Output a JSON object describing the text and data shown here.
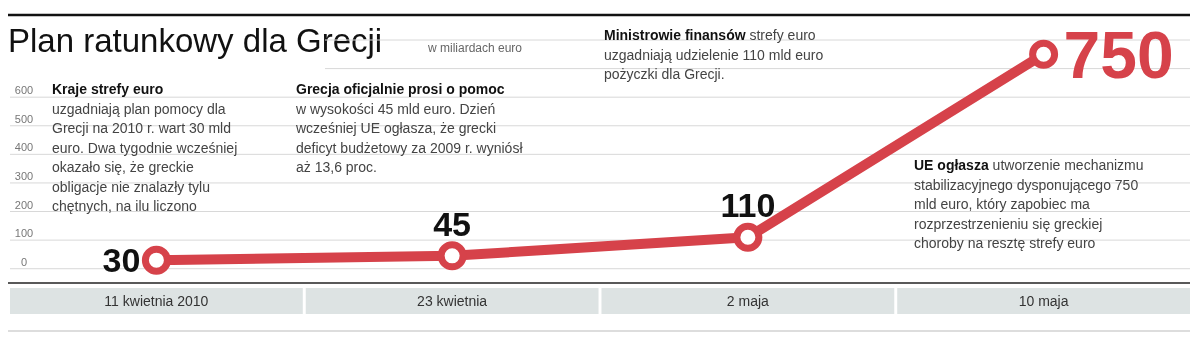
{
  "chart_data": {
    "type": "line",
    "title": "Plan ratunkowy dla Grecji",
    "subtitle": "w miliardach euro",
    "categories": [
      "11 kwietnia 2010",
      "23 kwietnia",
      "2 maja",
      "10 maja"
    ],
    "values": [
      30,
      45,
      110,
      750
    ],
    "color": "#d6424a",
    "marker": "circle",
    "line_style": "solid",
    "data_labels": true,
    "ylim": [
      -50,
      800
    ],
    "yticks": [
      0,
      100,
      200,
      300,
      400,
      500,
      600,
      {
        "value": 700,
        "label": null
      },
      {
        "value": 800,
        "label": null
      }
    ],
    "grid": "y",
    "legend": false,
    "annotations": [
      "Kraje strefy euro",
      "uzgadniają plan pomocy dla Grecji na 2010 r. wart 30 mld euro. Dwa tygodnie wcześniej okazało się, że greckie obligacje nie znalazły tylu chętnych, na ilu liczono",
      "Grecja oficjalnie prosi o pomoc",
      "w wysokości 45 mld euro. Dzień wcześniej UE ogłasza, że grecki deficyt budżetowy za 2009 r. wyniósł aż 13,6 proc.",
      "Ministrowie finansów",
      "strefy euro uzgadniają udzielenie 110 mld euro pożyczki dla Grecji.",
      "UE ogłasza",
      "utworzenie mechanizmu stabilizacyjnego dysponującego 750 mld euro, który zapobiec ma rozprzestrzenieniu się greckiej choroby na resztę strefy euro"
    ]
  }
}
